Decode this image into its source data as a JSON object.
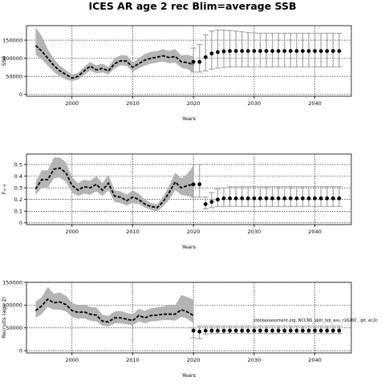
{
  "title": "ICES AR age 2 rec Blim=average SSB",
  "footnote": "stockassessment.org, NCCNS_split_tsb_ass, r16200 , git: ec2c",
  "colors": {
    "line": "#000000",
    "band": "#b4b4b4",
    "errorbar": "#a9a9a9",
    "grid": "#000000"
  },
  "chart_data": [
    {
      "type": "line",
      "title": "",
      "xlabel": "Years",
      "ylabel": "SSB",
      "xlim": [
        1992.5,
        2046.0
      ],
      "ylim": [
        -5000,
        190000
      ],
      "xticks": [
        2000,
        2010,
        2020,
        2030,
        2040
      ],
      "yticks": [
        0,
        50000,
        100000,
        150000
      ],
      "grid": true,
      "historical": {
        "x": [
          1994,
          1995,
          1996,
          1997,
          1998,
          1999,
          2000,
          2001,
          2002,
          2003,
          2004,
          2005,
          2006,
          2007,
          2008,
          2009,
          2010,
          2011,
          2012,
          2013,
          2014,
          2015,
          2016,
          2017,
          2018,
          2019,
          2020
        ],
        "y": [
          135000,
          120000,
          100000,
          80000,
          65000,
          55000,
          45000,
          50000,
          65000,
          78000,
          68000,
          72000,
          65000,
          85000,
          93000,
          92000,
          75000,
          85000,
          95000,
          100000,
          103000,
          107000,
          102000,
          105000,
          90000,
          88000,
          82000
        ],
        "lower": [
          110000,
          97000,
          80000,
          62000,
          50000,
          41000,
          37000,
          41000,
          54000,
          66000,
          58000,
          61000,
          55000,
          72000,
          80000,
          79000,
          63000,
          72000,
          80000,
          85000,
          88000,
          91000,
          86000,
          88000,
          74000,
          70000,
          60000
        ],
        "upper": [
          185000,
          162000,
          125000,
          98000,
          80000,
          67000,
          55000,
          60000,
          76000,
          90000,
          80000,
          85000,
          76000,
          100000,
          108000,
          108000,
          88000,
          100000,
          112000,
          118000,
          120000,
          125000,
          120000,
          125000,
          108000,
          110000,
          105000
        ]
      },
      "projection": {
        "x": [
          2020,
          2021,
          2022,
          2023,
          2024,
          2025,
          2026,
          2027,
          2028,
          2029,
          2030,
          2031,
          2032,
          2033,
          2034,
          2035,
          2036,
          2037,
          2038,
          2039,
          2040,
          2041,
          2042,
          2043,
          2044
        ],
        "y": [
          90000,
          90000,
          103000,
          113000,
          117000,
          119000,
          120000,
          120000,
          120000,
          120000,
          120000,
          120000,
          120000,
          120000,
          120000,
          120000,
          120000,
          120000,
          120000,
          120000,
          120000,
          120000,
          120000,
          120000,
          120000
        ],
        "lower": [
          62000,
          62000,
          65000,
          70000,
          73000,
          75000,
          76000,
          76000,
          76000,
          76000,
          76000,
          76000,
          76000,
          76000,
          76000,
          76000,
          76000,
          76000,
          76000,
          76000,
          76000,
          76000,
          76000,
          76000,
          76000
        ],
        "upper": [
          128000,
          138000,
          165000,
          175000,
          178000,
          178000,
          177000,
          175000,
          173000,
          171000,
          170000,
          169000,
          169000,
          169000,
          169000,
          169000,
          169000,
          169000,
          169000,
          169000,
          169000,
          169000,
          169000,
          169000,
          169000
        ]
      }
    },
    {
      "type": "line",
      "title": "",
      "xlabel": "Years",
      "ylabel": "F₄₋₈",
      "xlim": [
        1992.5,
        2046.0
      ],
      "ylim": [
        -0.015,
        0.59
      ],
      "xticks": [
        2000,
        2010,
        2020,
        2030,
        2040
      ],
      "yticks": [
        0.0,
        0.1,
        0.2,
        0.3,
        0.4,
        0.5
      ],
      "grid": true,
      "historical": {
        "x": [
          1994,
          1995,
          1996,
          1997,
          1998,
          1999,
          2000,
          2001,
          2002,
          2003,
          2004,
          2005,
          2006,
          2007,
          2008,
          2009,
          2010,
          2011,
          2012,
          2013,
          2014,
          2015,
          2016,
          2017,
          2018,
          2019,
          2020
        ],
        "y": [
          0.29,
          0.37,
          0.37,
          0.46,
          0.47,
          0.43,
          0.32,
          0.28,
          0.31,
          0.3,
          0.33,
          0.28,
          0.34,
          0.23,
          0.22,
          0.19,
          0.22,
          0.2,
          0.16,
          0.14,
          0.13,
          0.18,
          0.26,
          0.35,
          0.3,
          0.32,
          0.33
        ],
        "lower": [
          0.24,
          0.3,
          0.3,
          0.38,
          0.39,
          0.35,
          0.26,
          0.23,
          0.25,
          0.24,
          0.27,
          0.23,
          0.28,
          0.18,
          0.17,
          0.15,
          0.17,
          0.16,
          0.13,
          0.11,
          0.1,
          0.14,
          0.2,
          0.28,
          0.24,
          0.23,
          0.22
        ],
        "upper": [
          0.35,
          0.45,
          0.45,
          0.56,
          0.56,
          0.52,
          0.39,
          0.34,
          0.37,
          0.36,
          0.4,
          0.34,
          0.41,
          0.28,
          0.27,
          0.24,
          0.28,
          0.25,
          0.2,
          0.17,
          0.16,
          0.22,
          0.32,
          0.43,
          0.38,
          0.42,
          0.49
        ]
      },
      "projection": {
        "x": [
          2020,
          2021,
          2022,
          2023,
          2024,
          2025,
          2026,
          2027,
          2028,
          2029,
          2030,
          2031,
          2032,
          2033,
          2034,
          2035,
          2036,
          2037,
          2038,
          2039,
          2040,
          2041,
          2042,
          2043,
          2044
        ],
        "y": [
          0.33,
          0.33,
          0.16,
          0.18,
          0.2,
          0.21,
          0.21,
          0.21,
          0.21,
          0.21,
          0.21,
          0.21,
          0.21,
          0.21,
          0.21,
          0.21,
          0.21,
          0.21,
          0.21,
          0.21,
          0.21,
          0.21,
          0.21,
          0.21,
          0.21
        ],
        "lower": [
          0.22,
          0.22,
          0.12,
          0.13,
          0.14,
          0.14,
          0.14,
          0.14,
          0.14,
          0.14,
          0.14,
          0.14,
          0.14,
          0.14,
          0.14,
          0.14,
          0.14,
          0.14,
          0.14,
          0.14,
          0.14,
          0.14,
          0.14,
          0.14,
          0.14
        ],
        "upper": [
          0.5,
          0.5,
          0.22,
          0.26,
          0.29,
          0.3,
          0.31,
          0.31,
          0.31,
          0.31,
          0.31,
          0.31,
          0.31,
          0.31,
          0.31,
          0.31,
          0.31,
          0.31,
          0.31,
          0.31,
          0.31,
          0.31,
          0.31,
          0.31,
          0.31
        ]
      }
    },
    {
      "type": "line",
      "title": "",
      "xlabel": "Years",
      "ylabel": "Recruits (age 2)",
      "xlim": [
        1992.5,
        2046.0
      ],
      "ylim": [
        -5000,
        150000
      ],
      "xticks": [
        2000,
        2010,
        2020,
        2030,
        2040
      ],
      "yticks": [
        0,
        50000,
        100000,
        150000
      ],
      "grid": true,
      "historical": {
        "x": [
          1994,
          1995,
          1996,
          1997,
          1998,
          1999,
          2000,
          2001,
          2002,
          2003,
          2004,
          2005,
          2006,
          2007,
          2008,
          2009,
          2010,
          2011,
          2012,
          2013,
          2014,
          2015,
          2016,
          2017,
          2018,
          2019,
          2020
        ],
        "y": [
          88000,
          98000,
          113000,
          105000,
          107000,
          101000,
          88000,
          84000,
          85000,
          80000,
          78000,
          65000,
          63000,
          72000,
          72000,
          69000,
          66000,
          77000,
          72000,
          77000,
          78000,
          80000,
          80000,
          80000,
          90000,
          85000,
          77000
        ],
        "lower": [
          72000,
          80000,
          96000,
          90000,
          90000,
          86000,
          74000,
          70000,
          71000,
          66000,
          64000,
          55000,
          53000,
          60000,
          60000,
          58000,
          55000,
          64000,
          60000,
          64000,
          65000,
          67000,
          67000,
          66000,
          74000,
          70000,
          60000
        ],
        "upper": [
          108000,
          117000,
          140000,
          125000,
          128000,
          120000,
          105000,
          100000,
          101000,
          96000,
          95000,
          79000,
          76000,
          86000,
          87000,
          83000,
          80000,
          92000,
          87000,
          93000,
          95000,
          97000,
          100000,
          100000,
          122000,
          118000,
          112000
        ]
      },
      "projection": {
        "x": [
          2020,
          2021,
          2022,
          2023,
          2024,
          2025,
          2026,
          2027,
          2028,
          2029,
          2030,
          2031,
          2032,
          2033,
          2034,
          2035,
          2036,
          2037,
          2038,
          2039,
          2040,
          2041,
          2042,
          2043,
          2044
        ],
        "y": [
          44000,
          42000,
          44000,
          44000,
          44000,
          44000,
          44000,
          44000,
          44000,
          44000,
          44000,
          44000,
          44000,
          44000,
          44000,
          44000,
          44000,
          44000,
          44000,
          44000,
          44000,
          44000,
          44000,
          44000,
          44000
        ],
        "lower": [
          28000,
          26000,
          36000,
          38000,
          38000,
          38000,
          38000,
          38000,
          38000,
          38000,
          38000,
          38000,
          38000,
          38000,
          38000,
          38000,
          38000,
          38000,
          38000,
          38000,
          38000,
          38000,
          38000,
          38000,
          38000
        ],
        "upper": [
          50000,
          54000,
          54000,
          54000,
          54000,
          54000,
          54000,
          54000,
          54000,
          54000,
          54000,
          54000,
          54000,
          54000,
          54000,
          54000,
          54000,
          54000,
          54000,
          54000,
          54000,
          54000,
          54000,
          54000,
          54000
        ]
      }
    }
  ]
}
